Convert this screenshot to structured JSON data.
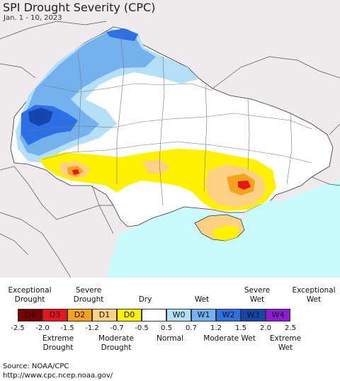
{
  "title": "SPI Drought Severity (CPC)",
  "date": "Jan. 1 - 10, 2023",
  "legend": {
    "top_labels": [
      {
        "text": "Exceptional Drought",
        "key": "D4"
      },
      {
        "text": "Severe Drought",
        "key": "D2"
      },
      {
        "text": "Dry",
        "key": "D0"
      },
      {
        "text": "Wet",
        "key": "W0"
      },
      {
        "text": "Severe Wet",
        "key": "W2"
      },
      {
        "text": "Exceptional Wet",
        "key": "W4"
      }
    ],
    "categories": [
      {
        "label": "D4",
        "color": "#7a0000"
      },
      {
        "label": "D3",
        "color": "#e8141c"
      },
      {
        "label": "D2",
        "color": "#f7a21d"
      },
      {
        "label": "D1",
        "color": "#fdd184"
      },
      {
        "label": "D0",
        "color": "#fff200"
      },
      {
        "label": "",
        "color": "#ffffff"
      },
      {
        "label": "W0",
        "color": "#b3e0f7"
      },
      {
        "label": "W1",
        "color": "#74b2ef"
      },
      {
        "label": "W2",
        "color": "#2d6fe4"
      },
      {
        "label": "W3",
        "color": "#1446ad"
      },
      {
        "label": "W4",
        "color": "#8c1ad7"
      }
    ],
    "ticks": [
      "-2.5",
      "-2.0",
      "-1.5",
      "-1.2",
      "-0.7",
      "-0.5",
      "0.5",
      "0.7",
      "1.2",
      "1.5",
      "2.0",
      "2.5"
    ],
    "bottom_labels": [
      {
        "text": "Extreme Drought",
        "key": "D3"
      },
      {
        "text": "Moderate Drought",
        "key": "D1"
      },
      {
        "text": "Normal",
        "key": "none"
      },
      {
        "text": "Moderate Wet",
        "key": "W1"
      },
      {
        "text": "Extreme Wet",
        "key": "W3"
      }
    ]
  },
  "source": {
    "line1": "Source: NOAA/CPC",
    "line2": "http://www.cpc.ncep.noaa.gov/"
  },
  "colors": {
    "sea": "#c9fbfb",
    "outside": "#eeeaee",
    "land": "#ffffff",
    "border": "#555555"
  }
}
